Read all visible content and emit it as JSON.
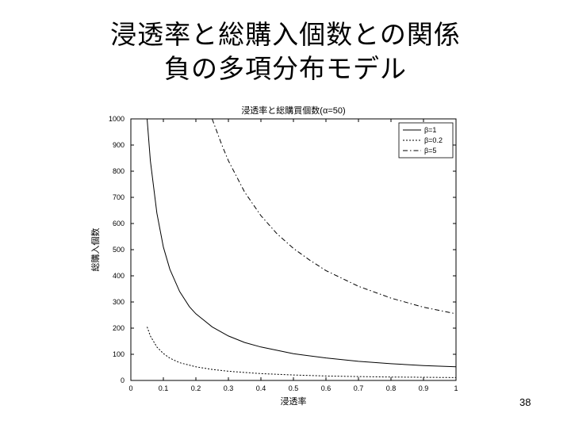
{
  "slide": {
    "title_line1": "浸透率と総購入個数との関係",
    "title_line2": "負の多項分布モデル",
    "page_number": "38"
  },
  "chart_data": {
    "type": "line",
    "title": "浸透率と総購買個数(α=50)",
    "xlabel": "浸透率",
    "ylabel": "総購入個数",
    "xlim": [
      0,
      1
    ],
    "ylim": [
      0,
      1000
    ],
    "xticks": [
      "0",
      "0.1",
      "0.2",
      "0.3",
      "0.4",
      "0.5",
      "0.6",
      "0.7",
      "0.8",
      "0.9",
      "1"
    ],
    "yticks": [
      "0",
      "100",
      "200",
      "300",
      "400",
      "500",
      "600",
      "700",
      "800",
      "900",
      "1000"
    ],
    "grid": false,
    "legend_position": "top-right",
    "series": [
      {
        "name": "β=1",
        "dash": "solid",
        "x": [
          0.05,
          0.06,
          0.08,
          0.1,
          0.12,
          0.15,
          0.18,
          0.2,
          0.25,
          0.3,
          0.35,
          0.4,
          0.5,
          0.6,
          0.7,
          0.8,
          0.9,
          1.0
        ],
        "y": [
          1000,
          840,
          640,
          510,
          425,
          340,
          282,
          255,
          205,
          170,
          145,
          128,
          102,
          86,
          73,
          64,
          57,
          52
        ]
      },
      {
        "name": "β=0.2",
        "dash": "dotted",
        "x": [
          0.05,
          0.06,
          0.08,
          0.1,
          0.12,
          0.15,
          0.2,
          0.25,
          0.3,
          0.4,
          0.5,
          0.6,
          0.7,
          0.8,
          0.9,
          1.0
        ],
        "y": [
          205,
          170,
          128,
          103,
          85,
          68,
          52,
          42,
          35,
          26,
          21,
          17,
          15,
          13,
          12,
          11
        ]
      },
      {
        "name": "β=5",
        "dash": "dashdot",
        "x": [
          0.25,
          0.28,
          0.3,
          0.35,
          0.4,
          0.45,
          0.5,
          0.55,
          0.6,
          0.7,
          0.8,
          0.9,
          1.0
        ],
        "y": [
          1000,
          900,
          840,
          720,
          630,
          560,
          505,
          460,
          420,
          360,
          315,
          280,
          255
        ]
      }
    ]
  },
  "colors": {
    "line": "#000000",
    "background": "#ffffff"
  }
}
